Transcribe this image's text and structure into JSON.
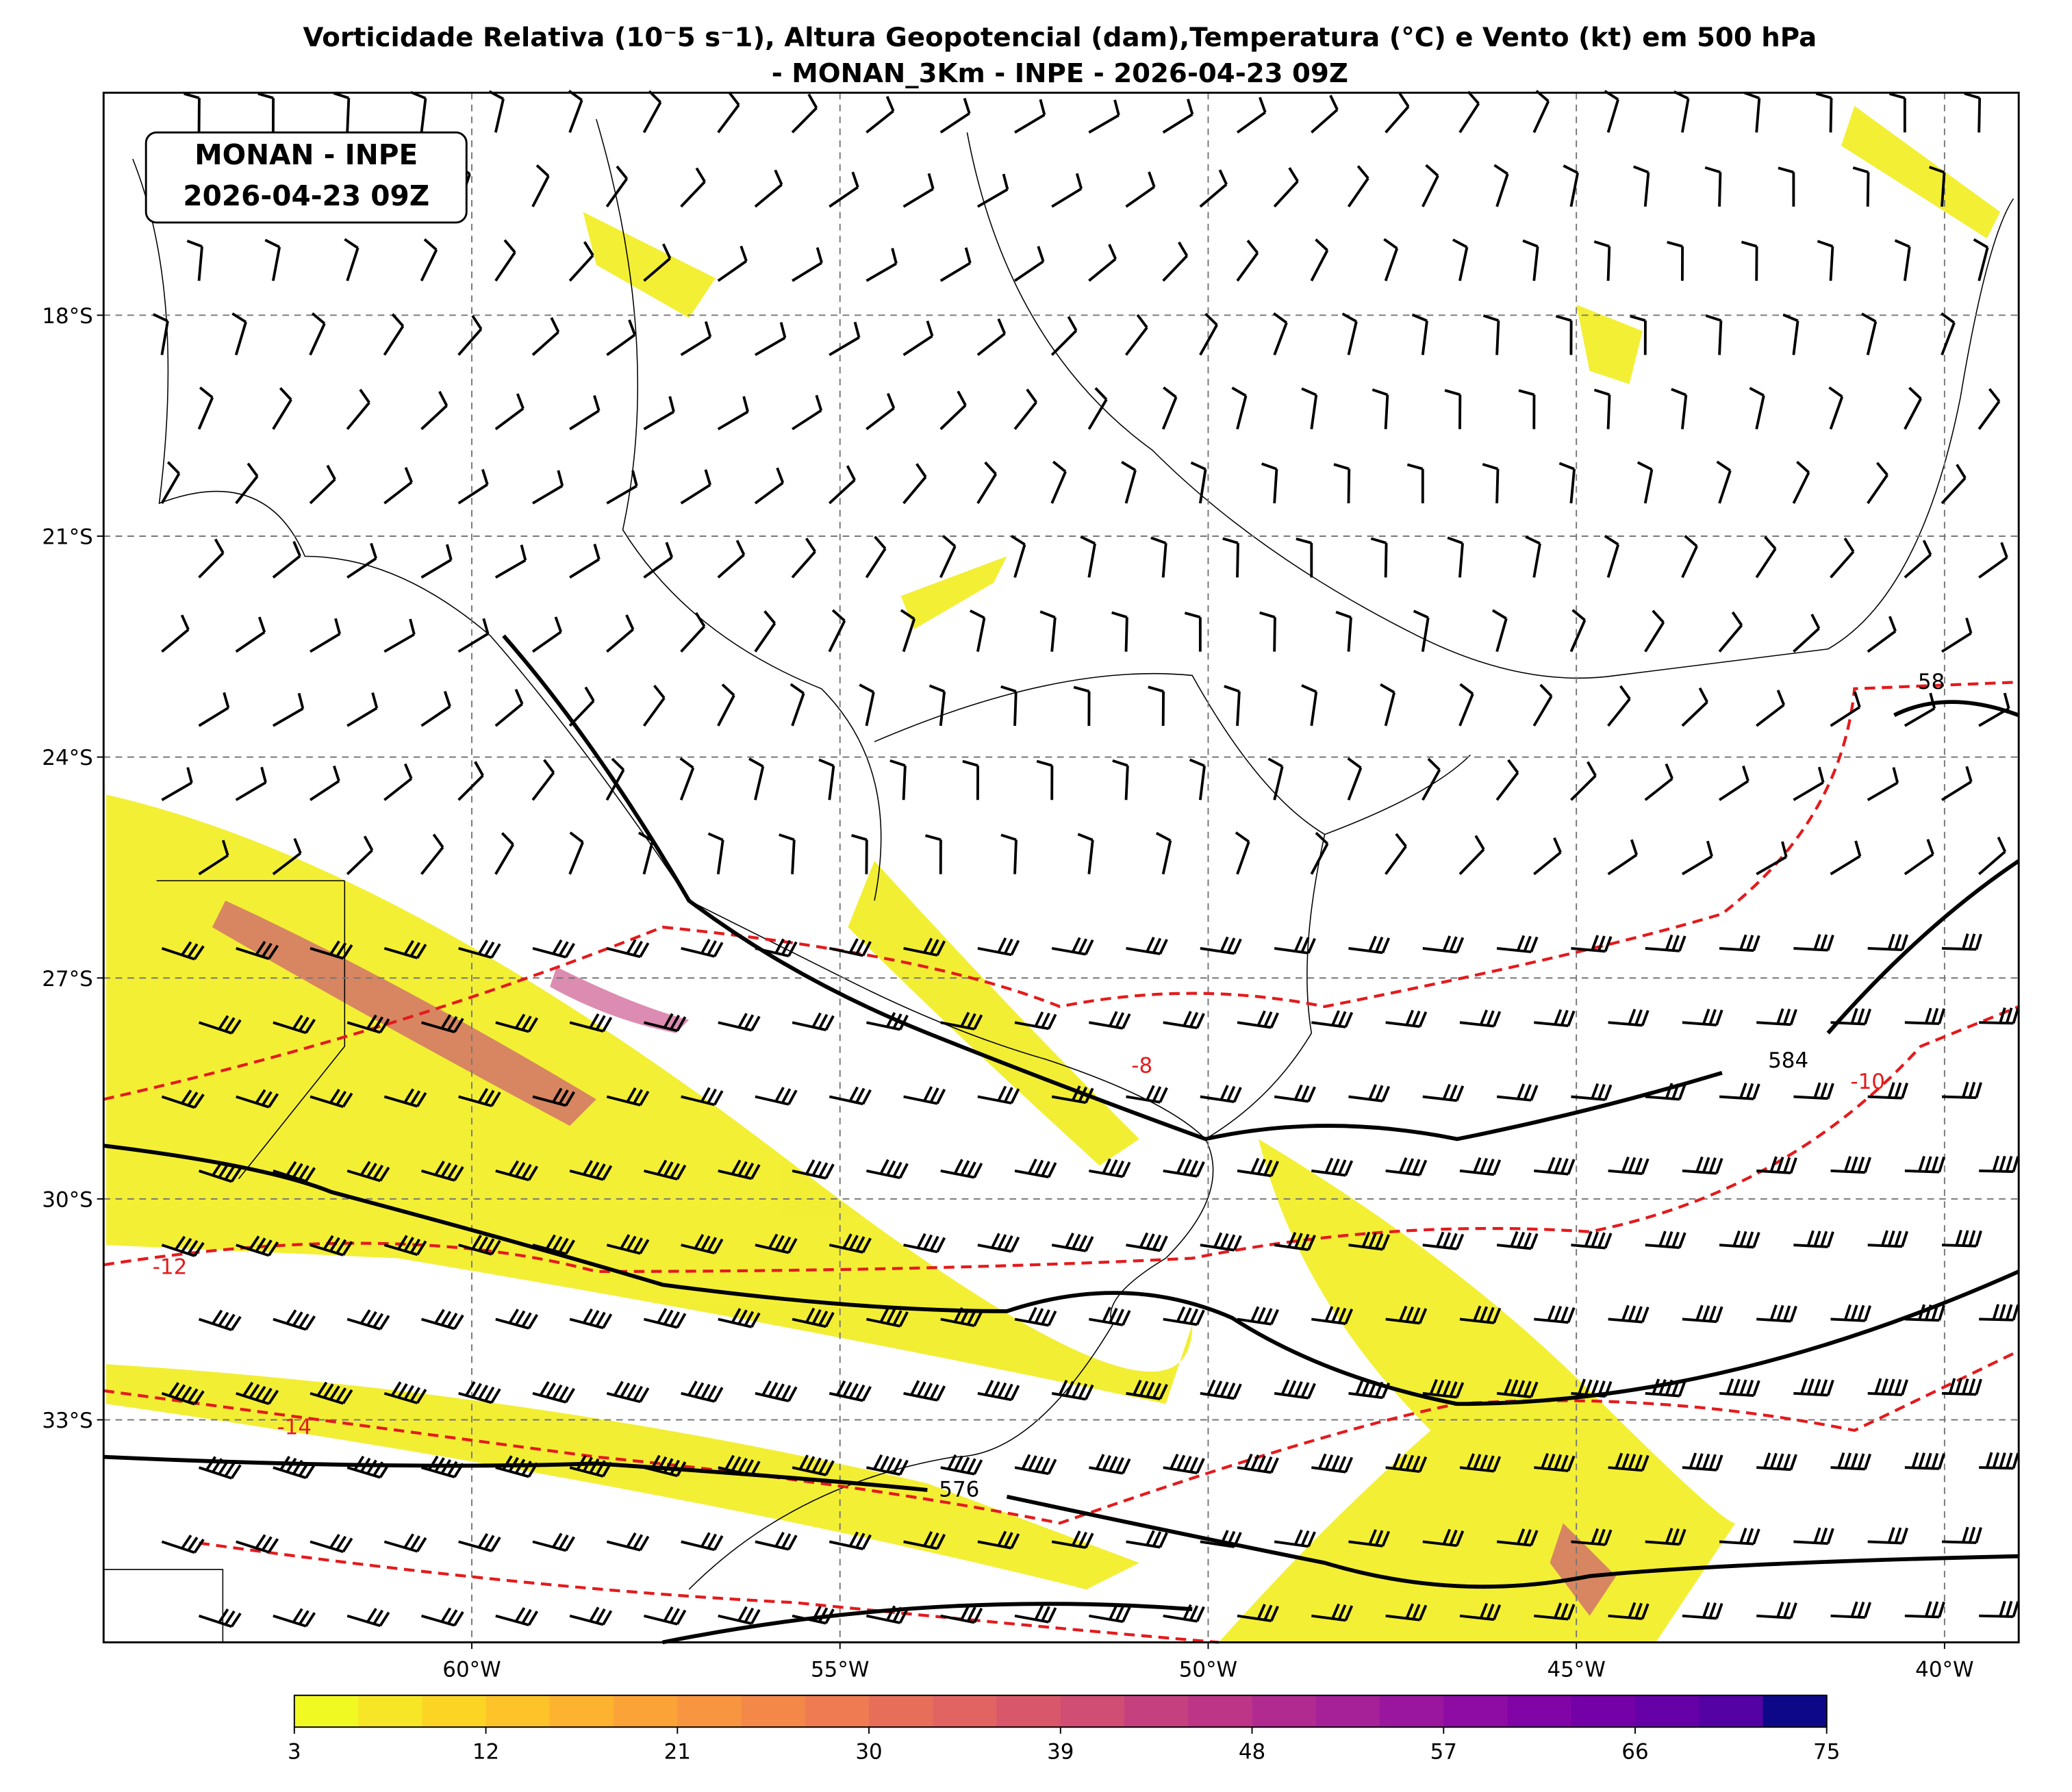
{
  "title": [
    "Vorticidade Relativa (10⁻5 s⁻1), Altura Geopotencial (dam),Temperatura (°C) e Vento (kt) em 500 hPa",
    "- MONAN_3Km - INPE - 2026-04-23 09Z"
  ],
  "info_box": [
    "MONAN - INPE",
    "2026-04-23 09Z"
  ],
  "lat_labels": [
    "18°S",
    "21°S",
    "24°S",
    "27°S",
    "30°S",
    "33°S"
  ],
  "lon_labels": [
    "60°W",
    "55°W",
    "50°W",
    "45°W",
    "40°W"
  ],
  "contour_labels": [
    "584",
    "576",
    "58",
    "-10",
    "-12",
    "-14",
    "-8"
  ],
  "colorbar": {
    "lim": [
      3,
      75
    ],
    "ticks": [
      3,
      12,
      21,
      30,
      39,
      48,
      57,
      66,
      75
    ],
    "colors": [
      "#f0f921",
      "#f6e626",
      "#fbd424",
      "#fdc328",
      "#fdb32f",
      "#fca338",
      "#f89540",
      "#f48849",
      "#ee7b51",
      "#e76f5a",
      "#e16462",
      "#d8576b",
      "#d04d73",
      "#c5407e",
      "#bc3587",
      "#b12a90",
      "#a62098",
      "#9a169f",
      "#8e0ca4",
      "#8104a7",
      "#7401a8",
      "#6600a7",
      "#5402a3",
      "#0d0887"
    ]
  }
}
